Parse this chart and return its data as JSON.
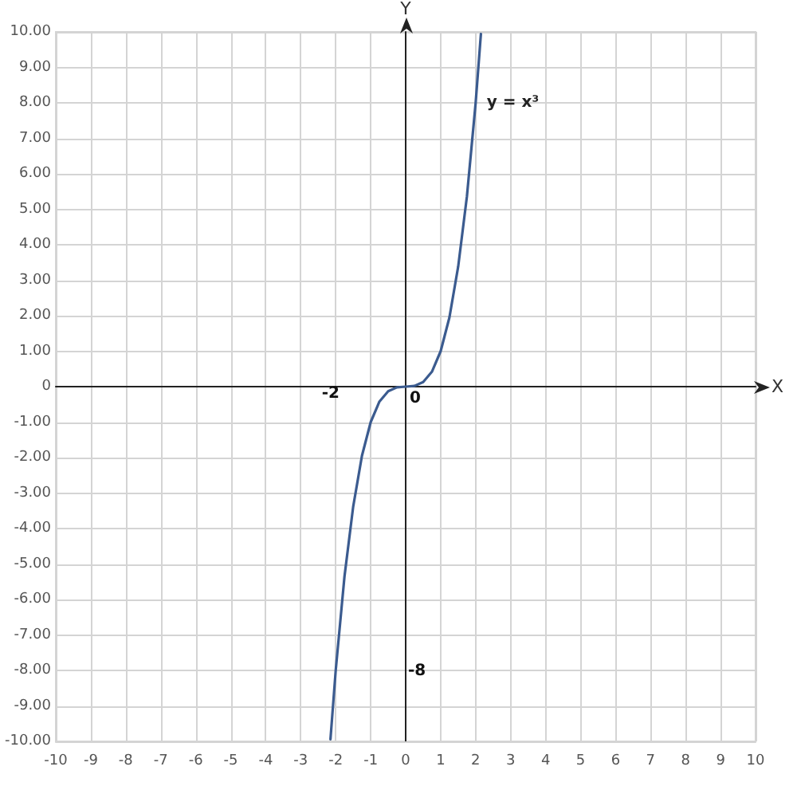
{
  "chart_data": {
    "type": "line",
    "xlabel": "X",
    "ylabel": "Y",
    "x": [
      -2.15,
      -2,
      -1.75,
      -1.5,
      -1.25,
      -1,
      -0.75,
      -0.5,
      -0.25,
      0,
      0.25,
      0.5,
      0.75,
      1,
      1.25,
      1.5,
      1.75,
      2,
      2.15
    ],
    "series": [
      {
        "name": "y = x³",
        "color": "#3b5b8f",
        "values": [
          -9.94,
          -8,
          -5.36,
          -3.38,
          -1.95,
          -1,
          -0.42,
          -0.13,
          -0.02,
          0,
          0.02,
          0.13,
          0.42,
          1,
          1.95,
          3.38,
          5.36,
          8,
          9.94
        ]
      }
    ],
    "xlim": [
      -10,
      10
    ],
    "ylim": [
      -10,
      10
    ],
    "xticks": [
      -10,
      -9,
      -8,
      -7,
      -6,
      -5,
      -4,
      -3,
      -2,
      -1,
      0,
      1,
      2,
      3,
      4,
      5,
      6,
      7,
      8,
      9,
      10
    ],
    "yticks": [
      {
        "value": -10,
        "label": "-10.00"
      },
      {
        "value": -9,
        "label": "-9.00"
      },
      {
        "value": -8,
        "label": "-8.00"
      },
      {
        "value": -7,
        "label": "-7.00"
      },
      {
        "value": -6,
        "label": "-6.00"
      },
      {
        "value": -5,
        "label": "-5.00"
      },
      {
        "value": -4,
        "label": "-4.00"
      },
      {
        "value": -3,
        "label": "-3.00"
      },
      {
        "value": -2,
        "label": "-2.00"
      },
      {
        "value": -1,
        "label": "-1.00"
      },
      0,
      {
        "value": 1,
        "label": "1.00"
      },
      {
        "value": 2,
        "label": "2.00"
      },
      {
        "value": 3,
        "label": "3.00"
      },
      {
        "value": 4,
        "label": "4.00"
      },
      {
        "value": 5,
        "label": "5.00"
      },
      {
        "value": 6,
        "label": "6.00"
      },
      {
        "value": 7,
        "label": "7.00"
      },
      {
        "value": 8,
        "label": "8.00"
      },
      {
        "value": 9,
        "label": "9.00"
      },
      {
        "value": 10,
        "label": "10.00"
      }
    ],
    "grid": true,
    "legend": false,
    "marker": "none",
    "line_style": "solid",
    "annotations": [
      "-2",
      "0",
      "-8"
    ]
  }
}
